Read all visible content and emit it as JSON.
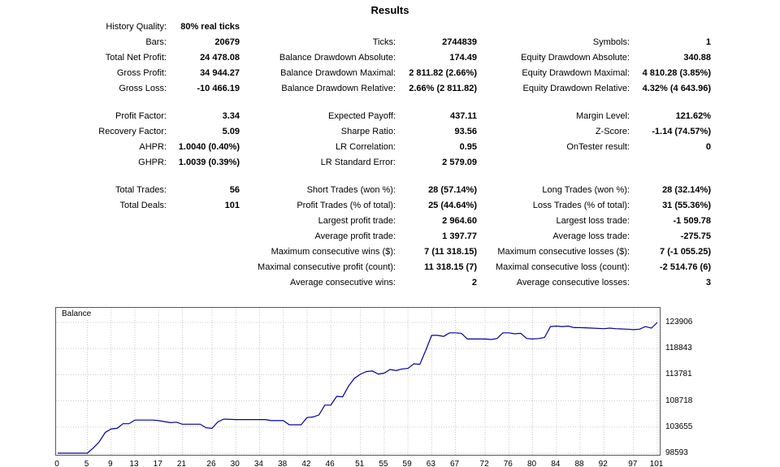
{
  "title": "Results",
  "stats": {
    "rows": [
      {
        "cells": [
          "History Quality:",
          "80% real ticks",
          "",
          "",
          "",
          ""
        ]
      },
      {
        "cells": [
          "Bars:",
          "20679",
          "Ticks:",
          "2744839",
          "Symbols:",
          "1"
        ]
      },
      {
        "cells": [
          "Total Net Profit:",
          "24 478.08",
          "Balance Drawdown Absolute:",
          "174.49",
          "Equity Drawdown Absolute:",
          "340.88"
        ]
      },
      {
        "cells": [
          "Gross Profit:",
          "34 944.27",
          "Balance Drawdown Maximal:",
          "2 811.82 (2.66%)",
          "Equity Drawdown Maximal:",
          "4 810.28 (3.85%)"
        ]
      },
      {
        "cells": [
          "Gross Loss:",
          "-10 466.19",
          "Balance Drawdown Relative:",
          "2.66% (2 811.82)",
          "Equity Drawdown Relative:",
          "4.32% (4 643.96)"
        ]
      },
      {
        "spacer": true
      },
      {
        "cells": [
          "Profit Factor:",
          "3.34",
          "Expected Payoff:",
          "437.11",
          "Margin Level:",
          "121.62%"
        ]
      },
      {
        "cells": [
          "Recovery Factor:",
          "5.09",
          "Sharpe Ratio:",
          "93.56",
          "Z-Score:",
          "-1.14 (74.57%)"
        ]
      },
      {
        "cells": [
          "AHPR:",
          "1.0040 (0.40%)",
          "LR Correlation:",
          "0.95",
          "OnTester result:",
          "0"
        ]
      },
      {
        "cells": [
          "GHPR:",
          "1.0039 (0.39%)",
          "LR Standard Error:",
          "2 579.09",
          "",
          ""
        ]
      },
      {
        "spacer": true
      },
      {
        "cells": [
          "Total Trades:",
          "56",
          "Short Trades (won %):",
          "28 (57.14%)",
          "Long Trades (won %):",
          "28 (32.14%)"
        ]
      },
      {
        "cells": [
          "Total Deals:",
          "101",
          "Profit Trades (% of total):",
          "25 (44.64%)",
          "Loss Trades (% of total):",
          "31 (55.36%)"
        ]
      },
      {
        "cells": [
          "",
          "",
          "Largest profit trade:",
          "2 964.60",
          "Largest loss trade:",
          "-1 509.78"
        ]
      },
      {
        "cells": [
          "",
          "",
          "Average profit trade:",
          "1 397.77",
          "Average loss trade:",
          "-275.75"
        ]
      },
      {
        "cells": [
          "",
          "",
          "Maximum consecutive wins ($):",
          "7 (11 318.15)",
          "Maximum consecutive losses ($):",
          "7 (-1 055.25)"
        ]
      },
      {
        "cells": [
          "",
          "",
          "Maximal consecutive profit (count):",
          "11 318.15 (7)",
          "Maximal consecutive loss (count):",
          "-2 514.76 (6)"
        ]
      },
      {
        "cells": [
          "",
          "",
          "Average consecutive wins:",
          "2",
          "Average consecutive losses:",
          "3"
        ]
      }
    ]
  },
  "chart_data": {
    "type": "line",
    "series_name": "Balance",
    "line_color": "#0000a0",
    "grid_color": "#c8c8c8",
    "x_max": 101,
    "x_ticks": [
      0,
      5,
      9,
      13,
      17,
      21,
      26,
      30,
      34,
      38,
      42,
      46,
      51,
      55,
      59,
      63,
      67,
      72,
      76,
      80,
      84,
      88,
      92,
      97,
      101
    ],
    "y_ticks": [
      98593,
      103655,
      108718,
      113781,
      118843,
      123906
    ],
    "ylim": [
      98593,
      123906
    ],
    "points": [
      [
        0,
        98593
      ],
      [
        5,
        98593
      ],
      [
        6,
        99600
      ],
      [
        7,
        100800
      ],
      [
        8,
        102600
      ],
      [
        9,
        103300
      ],
      [
        10,
        103400
      ],
      [
        11,
        104300
      ],
      [
        12,
        104300
      ],
      [
        13,
        105000
      ],
      [
        16,
        105000
      ],
      [
        17,
        104900
      ],
      [
        19,
        104500
      ],
      [
        20,
        104600
      ],
      [
        21,
        104200
      ],
      [
        24,
        104200
      ],
      [
        25,
        103500
      ],
      [
        26,
        103400
      ],
      [
        27,
        104700
      ],
      [
        28,
        105200
      ],
      [
        30,
        105100
      ],
      [
        35,
        105100
      ],
      [
        36,
        104900
      ],
      [
        38,
        104900
      ],
      [
        39,
        104100
      ],
      [
        41,
        104100
      ],
      [
        42,
        105500
      ],
      [
        43,
        105600
      ],
      [
        44,
        106000
      ],
      [
        45,
        107900
      ],
      [
        46,
        107900
      ],
      [
        47,
        109600
      ],
      [
        48,
        109500
      ],
      [
        49,
        111600
      ],
      [
        50,
        113100
      ],
      [
        51,
        113900
      ],
      [
        52,
        114400
      ],
      [
        53,
        114500
      ],
      [
        54,
        113900
      ],
      [
        55,
        114100
      ],
      [
        56,
        114800
      ],
      [
        57,
        114600
      ],
      [
        58,
        114900
      ],
      [
        59,
        115000
      ],
      [
        60,
        115900
      ],
      [
        61,
        115800
      ],
      [
        62,
        118500
      ],
      [
        63,
        121400
      ],
      [
        64,
        121400
      ],
      [
        65,
        121200
      ],
      [
        66,
        121900
      ],
      [
        67,
        121900
      ],
      [
        68,
        121800
      ],
      [
        69,
        120700
      ],
      [
        72,
        120700
      ],
      [
        73,
        120600
      ],
      [
        74,
        120800
      ],
      [
        75,
        121900
      ],
      [
        76,
        121900
      ],
      [
        77,
        121700
      ],
      [
        78,
        121800
      ],
      [
        79,
        120800
      ],
      [
        80,
        120700
      ],
      [
        81,
        120800
      ],
      [
        82,
        121000
      ],
      [
        83,
        123100
      ],
      [
        84,
        123200
      ],
      [
        85,
        123100
      ],
      [
        86,
        123200
      ],
      [
        87,
        122900
      ],
      [
        88,
        122900
      ],
      [
        90,
        122800
      ],
      [
        92,
        122700
      ],
      [
        93,
        122800
      ],
      [
        94,
        122700
      ],
      [
        96,
        122600
      ],
      [
        97,
        122500
      ],
      [
        98,
        122600
      ],
      [
        99,
        123100
      ],
      [
        100,
        122800
      ],
      [
        101,
        123906
      ]
    ]
  }
}
